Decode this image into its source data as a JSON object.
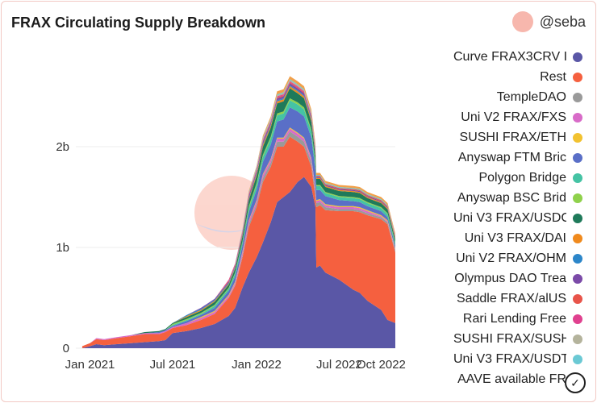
{
  "header": {
    "title": "FRAX Circulating Supply Breakdown",
    "author": "@seba"
  },
  "legend": {
    "items": [
      {
        "label": "Curve FRAX3CRV I",
        "color": "#5a57a6"
      },
      {
        "label": "Rest",
        "color": "#f5603f"
      },
      {
        "label": "TempleDAO",
        "color": "#9a9a9a"
      },
      {
        "label": "Uni V2 FRAX/FXS",
        "color": "#d86bc8"
      },
      {
        "label": "SUSHI FRAX/ETH",
        "color": "#f2c230"
      },
      {
        "label": "Anyswap FTM Bric",
        "color": "#5a6fc7"
      },
      {
        "label": "Polygon Bridge",
        "color": "#45c3a4"
      },
      {
        "label": "Anyswap BSC Brid",
        "color": "#8fd14b"
      },
      {
        "label": "Uni V3 FRAX/USDC",
        "color": "#1f7a5a"
      },
      {
        "label": "Uni V3 FRAX/DAI",
        "color": "#f08a1d"
      },
      {
        "label": "Uni V2 FRAX/OHM",
        "color": "#2c86c9"
      },
      {
        "label": "Olympus DAO Trea",
        "color": "#7b4aa8"
      },
      {
        "label": "Saddle FRAX/alUS",
        "color": "#e8544a"
      },
      {
        "label": "Rari Lending Free",
        "color": "#e0418f"
      },
      {
        "label": "SUSHI FRAX/SUSH",
        "color": "#b4b39c"
      },
      {
        "label": "Uni V3 FRAX/USDT",
        "color": "#6bc9d4"
      },
      {
        "label": "AAVE available FR",
        "color": "#f2a04a"
      }
    ]
  },
  "chart_data": {
    "type": "area",
    "x": [
      "2020-12-15",
      "2021-01-01",
      "2021-01-15",
      "2021-02-01",
      "2021-03-01",
      "2021-04-01",
      "2021-05-01",
      "2021-06-01",
      "2021-06-15",
      "2021-07-01",
      "2021-08-01",
      "2021-09-01",
      "2021-10-01",
      "2021-11-01",
      "2021-11-15",
      "2021-12-01",
      "2021-12-15",
      "2022-01-01",
      "2022-01-15",
      "2022-02-01",
      "2022-02-15",
      "2022-03-01",
      "2022-03-15",
      "2022-04-01",
      "2022-04-15",
      "2022-05-01",
      "2022-05-10",
      "2022-05-12",
      "2022-05-20",
      "2022-06-01",
      "2022-07-01",
      "2022-08-01",
      "2022-08-15",
      "2022-09-01",
      "2022-10-01",
      "2022-10-15",
      "2022-11-01"
    ],
    "series": [
      {
        "name": "Curve FRAX3CRV I",
        "values": [
          0.0,
          0.02,
          0.04,
          0.03,
          0.04,
          0.05,
          0.06,
          0.07,
          0.08,
          0.15,
          0.17,
          0.2,
          0.24,
          0.32,
          0.4,
          0.6,
          0.75,
          0.9,
          1.05,
          1.25,
          1.45,
          1.5,
          1.55,
          1.65,
          1.7,
          1.6,
          1.4,
          0.8,
          0.82,
          0.75,
          0.68,
          0.58,
          0.55,
          0.47,
          0.38,
          0.28,
          0.25
        ]
      },
      {
        "name": "Rest",
        "values": [
          0.02,
          0.03,
          0.05,
          0.05,
          0.06,
          0.07,
          0.08,
          0.07,
          0.08,
          0.05,
          0.06,
          0.08,
          0.1,
          0.18,
          0.22,
          0.3,
          0.45,
          0.5,
          0.6,
          0.55,
          0.55,
          0.5,
          0.55,
          0.4,
          0.3,
          0.2,
          0.1,
          0.6,
          0.6,
          0.62,
          0.68,
          0.78,
          0.8,
          0.85,
          0.9,
          0.95,
          0.7
        ]
      },
      {
        "name": "TempleDAO",
        "values": [
          0,
          0,
          0,
          0,
          0,
          0,
          0,
          0,
          0,
          0,
          0,
          0,
          0,
          0,
          0.01,
          0.02,
          0.03,
          0.03,
          0.04,
          0.04,
          0.05,
          0.05,
          0.05,
          0.05,
          0.05,
          0.05,
          0.05,
          0.04,
          0.03,
          0.03,
          0.02,
          0.02,
          0.02,
          0.02,
          0.02,
          0.02,
          0.02
        ]
      },
      {
        "name": "Uni V2 FRAX/FXS",
        "values": [
          0.0,
          0.0,
          0.01,
          0.01,
          0.01,
          0.01,
          0.01,
          0.01,
          0.01,
          0.01,
          0.02,
          0.02,
          0.02,
          0.02,
          0.02,
          0.03,
          0.03,
          0.03,
          0.03,
          0.03,
          0.03,
          0.03,
          0.03,
          0.03,
          0.03,
          0.03,
          0.03,
          0.02,
          0.02,
          0.02,
          0.02,
          0.02,
          0.02,
          0.02,
          0.01,
          0.01,
          0.01
        ]
      },
      {
        "name": "SUSHI FRAX/ETH",
        "values": [
          0.0,
          0.0,
          0.0,
          0.0,
          0.0,
          0.0,
          0.0,
          0.0,
          0.0,
          0.0,
          0.0,
          0.01,
          0.01,
          0.01,
          0.01,
          0.01,
          0.01,
          0.01,
          0.01,
          0.01,
          0.01,
          0.01,
          0.01,
          0.01,
          0.01,
          0.01,
          0.01,
          0.01,
          0.01,
          0.01,
          0.01,
          0.01,
          0.01,
          0.01,
          0.01,
          0.01,
          0.01
        ]
      },
      {
        "name": "Anyswap FTM Bric",
        "values": [
          0,
          0,
          0,
          0,
          0,
          0,
          0,
          0.01,
          0.01,
          0.01,
          0.02,
          0.02,
          0.03,
          0.04,
          0.05,
          0.06,
          0.08,
          0.1,
          0.12,
          0.14,
          0.16,
          0.18,
          0.2,
          0.21,
          0.21,
          0.2,
          0.18,
          0.1,
          0.09,
          0.08,
          0.06,
          0.05,
          0.05,
          0.04,
          0.04,
          0.03,
          0.03
        ]
      },
      {
        "name": "Polygon Bridge",
        "values": [
          0,
          0,
          0,
          0,
          0,
          0,
          0,
          0,
          0,
          0.01,
          0.01,
          0.01,
          0.02,
          0.02,
          0.03,
          0.03,
          0.04,
          0.05,
          0.05,
          0.06,
          0.06,
          0.06,
          0.07,
          0.07,
          0.07,
          0.06,
          0.05,
          0.04,
          0.04,
          0.03,
          0.03,
          0.03,
          0.03,
          0.03,
          0.03,
          0.03,
          0.02
        ]
      },
      {
        "name": "Anyswap BSC Brid",
        "values": [
          0,
          0,
          0,
          0,
          0,
          0,
          0,
          0,
          0,
          0.01,
          0.01,
          0.01,
          0.01,
          0.01,
          0.01,
          0.01,
          0.02,
          0.02,
          0.02,
          0.02,
          0.02,
          0.02,
          0.02,
          0.02,
          0.02,
          0.02,
          0.02,
          0.01,
          0.01,
          0.01,
          0.01,
          0.01,
          0.01,
          0.01,
          0.01,
          0.01,
          0.01
        ]
      },
      {
        "name": "Uni V3 FRAX/USDC",
        "values": [
          0,
          0,
          0,
          0,
          0,
          0,
          0.01,
          0.01,
          0.01,
          0.01,
          0.02,
          0.02,
          0.03,
          0.03,
          0.04,
          0.05,
          0.06,
          0.07,
          0.08,
          0.09,
          0.1,
          0.1,
          0.1,
          0.09,
          0.09,
          0.08,
          0.07,
          0.06,
          0.06,
          0.05,
          0.05,
          0.05,
          0.05,
          0.04,
          0.04,
          0.04,
          0.03
        ]
      },
      {
        "name": "Uni V3 FRAX/DAI",
        "values": [
          0,
          0,
          0,
          0,
          0,
          0,
          0,
          0,
          0,
          0,
          0.01,
          0.01,
          0.01,
          0.01,
          0.01,
          0.01,
          0.01,
          0.02,
          0.02,
          0.02,
          0.02,
          0.02,
          0.02,
          0.02,
          0.02,
          0.02,
          0.02,
          0.01,
          0.01,
          0.01,
          0.01,
          0.01,
          0.01,
          0.01,
          0.01,
          0.01,
          0.01
        ]
      },
      {
        "name": "Uni V2 FRAX/OHM",
        "values": [
          0,
          0,
          0,
          0,
          0,
          0,
          0,
          0,
          0,
          0,
          0.01,
          0.01,
          0.01,
          0.01,
          0.01,
          0.01,
          0.01,
          0.01,
          0.01,
          0.01,
          0.01,
          0.01,
          0.01,
          0.01,
          0.01,
          0.01,
          0.01,
          0.0,
          0.0,
          0.0,
          0.0,
          0.0,
          0.0,
          0.0,
          0.0,
          0.0,
          0.0
        ]
      },
      {
        "name": "Olympus DAO Trea",
        "values": [
          0,
          0,
          0,
          0,
          0,
          0,
          0,
          0,
          0,
          0,
          0,
          0.01,
          0.01,
          0.01,
          0.01,
          0.01,
          0.02,
          0.02,
          0.02,
          0.02,
          0.02,
          0.02,
          0.02,
          0.02,
          0.02,
          0.02,
          0.02,
          0.01,
          0.01,
          0.01,
          0.01,
          0.01,
          0.01,
          0.01,
          0.01,
          0.01,
          0.01
        ]
      },
      {
        "name": "Saddle FRAX/alUS",
        "values": [
          0,
          0,
          0,
          0,
          0,
          0,
          0,
          0,
          0,
          0,
          0,
          0,
          0,
          0.01,
          0.01,
          0.01,
          0.01,
          0.01,
          0.01,
          0.01,
          0.01,
          0.01,
          0.01,
          0.01,
          0.01,
          0.01,
          0.01,
          0.01,
          0.01,
          0.01,
          0.01,
          0.01,
          0.01,
          0.01,
          0.01,
          0.01,
          0.01
        ]
      },
      {
        "name": "Rari Lending Free",
        "values": [
          0,
          0,
          0,
          0,
          0,
          0,
          0,
          0,
          0,
          0,
          0,
          0,
          0,
          0.01,
          0.01,
          0.01,
          0.01,
          0.01,
          0.01,
          0.01,
          0.01,
          0.01,
          0.01,
          0.01,
          0.01,
          0.01,
          0.01,
          0.0,
          0.0,
          0.0,
          0.0,
          0.0,
          0.0,
          0.0,
          0.0,
          0.0,
          0.0
        ]
      },
      {
        "name": "SUSHI FRAX/SUSH",
        "values": [
          0,
          0,
          0,
          0,
          0,
          0,
          0,
          0,
          0,
          0,
          0,
          0,
          0,
          0,
          0,
          0.01,
          0.01,
          0.01,
          0.01,
          0.01,
          0.01,
          0.01,
          0.01,
          0.01,
          0.01,
          0.01,
          0.01,
          0.0,
          0.0,
          0.0,
          0.0,
          0.0,
          0.0,
          0.0,
          0.0,
          0.0,
          0.0
        ]
      },
      {
        "name": "Uni V3 FRAX/USDT",
        "values": [
          0,
          0,
          0,
          0,
          0,
          0,
          0,
          0,
          0,
          0,
          0,
          0,
          0,
          0,
          0,
          0.01,
          0.01,
          0.01,
          0.01,
          0.01,
          0.01,
          0.01,
          0.01,
          0.01,
          0.01,
          0.01,
          0.01,
          0.01,
          0.01,
          0.01,
          0.01,
          0.01,
          0.01,
          0.01,
          0.01,
          0.01,
          0.01
        ]
      },
      {
        "name": "AAVE available FR",
        "values": [
          0,
          0,
          0,
          0,
          0,
          0,
          0,
          0,
          0,
          0,
          0,
          0,
          0,
          0,
          0,
          0,
          0.01,
          0.01,
          0.02,
          0.02,
          0.03,
          0.03,
          0.03,
          0.03,
          0.03,
          0.03,
          0.03,
          0.02,
          0.02,
          0.02,
          0.02,
          0.02,
          0.02,
          0.02,
          0.02,
          0.02,
          0.02
        ]
      }
    ],
    "xticks": [
      {
        "label": "Jan 2021",
        "date": "2021-01-01"
      },
      {
        "label": "Jul 2021",
        "date": "2021-07-01"
      },
      {
        "label": "Jan 2022",
        "date": "2022-01-01"
      },
      {
        "label": "Jul 2022",
        "date": "2022-07-01"
      },
      {
        "label": "Oct 2022",
        "date": "2022-10-01"
      }
    ],
    "yticks": [
      {
        "label": "0",
        "value": 0
      },
      {
        "label": "1b",
        "value": 1
      },
      {
        "label": "2b",
        "value": 2
      }
    ],
    "ylim": [
      0,
      3
    ],
    "xlim": [
      "2020-12-01",
      "2022-11-01"
    ],
    "grid": true,
    "legend_position": "right"
  }
}
